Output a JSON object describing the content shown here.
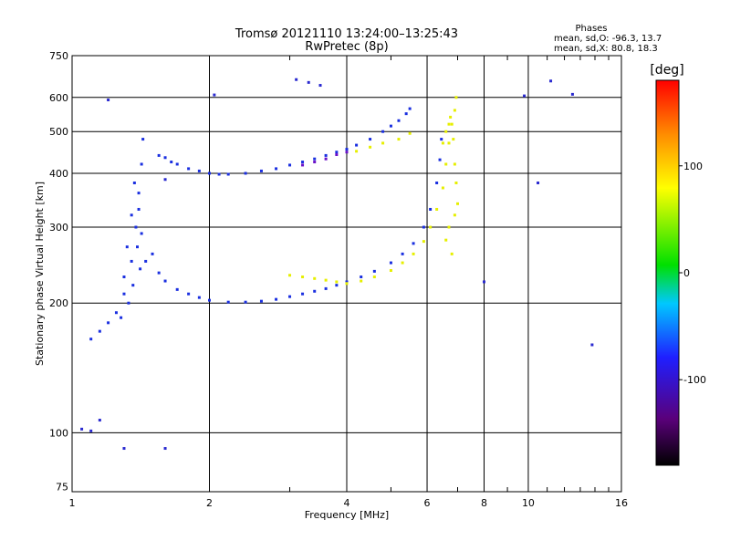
{
  "header": {
    "title_line1": "Tromsø 20121110 13:24:00–13:25:43",
    "title_line2": "RwPretec (8p)",
    "phase_title": "Phases",
    "phase_line1": "mean, sd,O: -96.3, 13.7",
    "phase_line2": "mean, sd,X:  80.8, 18.3"
  },
  "chart_data": {
    "type": "scatter",
    "xlabel": "Frequency [MHz]",
    "ylabel": "Stationary phase Virtual Height [km]",
    "x_scale": "log",
    "y_scale": "log",
    "xlim": [
      1,
      16
    ],
    "ylim": [
      73,
      750
    ],
    "x_ticks": [
      1,
      2,
      4,
      6,
      8,
      10,
      16
    ],
    "y_ticks": [
      75,
      100,
      200,
      300,
      400,
      500,
      600,
      750
    ],
    "grid": true,
    "colorbar": {
      "label": "[deg]",
      "range": [
        -180,
        180
      ],
      "ticks": [
        -100,
        0,
        100
      ],
      "colors": [
        "#000000",
        "#5a007a",
        "#1f1fff",
        "#00c8ff",
        "#00e000",
        "#ffff00",
        "#ff8c00",
        "#ff0000"
      ]
    },
    "series": [
      {
        "trace": "o_mode_F_trace",
        "color": "#1a2fe0",
        "points": [
          [
            1.55,
            440
          ],
          [
            1.6,
            435
          ],
          [
            1.65,
            425
          ],
          [
            1.7,
            420
          ],
          [
            1.8,
            410
          ],
          [
            1.9,
            405
          ],
          [
            2.0,
            400
          ],
          [
            2.1,
            398
          ],
          [
            2.2,
            398
          ],
          [
            2.4,
            400
          ],
          [
            2.6,
            405
          ],
          [
            2.8,
            410
          ],
          [
            3.0,
            418
          ],
          [
            3.2,
            425
          ],
          [
            3.4,
            432
          ],
          [
            3.6,
            440
          ],
          [
            3.8,
            448
          ],
          [
            4.0,
            455
          ],
          [
            4.2,
            465
          ],
          [
            4.5,
            480
          ],
          [
            4.8,
            500
          ],
          [
            5.0,
            515
          ],
          [
            5.2,
            530
          ],
          [
            5.4,
            550
          ],
          [
            5.5,
            565
          ],
          [
            1.5,
            260
          ],
          [
            1.55,
            235
          ],
          [
            1.6,
            225
          ],
          [
            1.7,
            215
          ],
          [
            1.8,
            210
          ],
          [
            1.9,
            206
          ],
          [
            2.0,
            203
          ],
          [
            2.2,
            201
          ],
          [
            2.4,
            201
          ],
          [
            2.6,
            202
          ],
          [
            2.8,
            204
          ],
          [
            3.0,
            207
          ],
          [
            3.2,
            210
          ],
          [
            3.4,
            213
          ],
          [
            3.6,
            216
          ],
          [
            3.8,
            220
          ],
          [
            4.0,
            224
          ],
          [
            4.3,
            230
          ],
          [
            4.6,
            237
          ],
          [
            5.0,
            248
          ],
          [
            5.3,
            260
          ],
          [
            5.6,
            275
          ],
          [
            5.9,
            300
          ],
          [
            6.1,
            330
          ],
          [
            6.3,
            380
          ],
          [
            6.4,
            430
          ],
          [
            6.45,
            480
          ],
          [
            1.1,
            165
          ],
          [
            1.15,
            172
          ],
          [
            1.2,
            180
          ],
          [
            1.25,
            190
          ],
          [
            1.3,
            210
          ],
          [
            1.35,
            250
          ],
          [
            1.38,
            300
          ],
          [
            1.4,
            360
          ],
          [
            1.42,
            420
          ],
          [
            1.43,
            480
          ],
          [
            1.3,
            230
          ],
          [
            1.32,
            270
          ],
          [
            1.35,
            320
          ],
          [
            1.37,
            380
          ],
          [
            1.4,
            330
          ],
          [
            1.42,
            290
          ],
          [
            1.45,
            250
          ],
          [
            1.33,
            200
          ],
          [
            1.28,
            185
          ],
          [
            1.36,
            220
          ],
          [
            1.39,
            270
          ],
          [
            1.41,
            240
          ]
        ]
      },
      {
        "trace": "x_mode_F_trace",
        "color": "#e6ef00",
        "points": [
          [
            3.0,
            232
          ],
          [
            3.2,
            230
          ],
          [
            3.4,
            228
          ],
          [
            3.6,
            226
          ],
          [
            3.8,
            224
          ],
          [
            4.0,
            222
          ],
          [
            4.3,
            225
          ],
          [
            4.6,
            230
          ],
          [
            5.0,
            238
          ],
          [
            5.3,
            248
          ],
          [
            5.6,
            260
          ],
          [
            5.9,
            278
          ],
          [
            6.1,
            300
          ],
          [
            6.3,
            330
          ],
          [
            6.5,
            370
          ],
          [
            6.6,
            420
          ],
          [
            6.7,
            470
          ],
          [
            6.8,
            520
          ],
          [
            6.9,
            560
          ],
          [
            6.95,
            600
          ],
          [
            6.5,
            470
          ],
          [
            6.6,
            500
          ],
          [
            6.7,
            520
          ],
          [
            6.75,
            540
          ],
          [
            6.85,
            480
          ],
          [
            6.9,
            420
          ],
          [
            6.95,
            380
          ],
          [
            7.0,
            340
          ],
          [
            6.6,
            280
          ],
          [
            6.7,
            300
          ],
          [
            6.8,
            260
          ],
          [
            6.9,
            320
          ],
          [
            4.2,
            450
          ],
          [
            4.5,
            460
          ],
          [
            4.8,
            470
          ],
          [
            5.2,
            480
          ],
          [
            5.5,
            495
          ]
        ]
      },
      {
        "trace": "purple_segment",
        "color": "#6a10c8",
        "points": [
          [
            3.2,
            418
          ],
          [
            3.4,
            425
          ],
          [
            3.6,
            432
          ],
          [
            3.8,
            442
          ],
          [
            4.0,
            448
          ]
        ]
      },
      {
        "trace": "scattered_outliers",
        "color": "#2a2ad0",
        "points": [
          [
            1.2,
            592
          ],
          [
            2.05,
            608
          ],
          [
            3.1,
            660
          ],
          [
            3.3,
            650
          ],
          [
            3.5,
            640
          ],
          [
            1.05,
            102
          ],
          [
            1.1,
            101
          ],
          [
            1.3,
            92
          ],
          [
            1.6,
            92
          ],
          [
            9.8,
            605
          ],
          [
            11.2,
            655
          ],
          [
            1.15,
            107
          ],
          [
            8.0,
            224
          ],
          [
            10.5,
            380
          ],
          [
            12.5,
            610
          ],
          [
            13.8,
            160
          ],
          [
            1.6,
            387
          ]
        ]
      }
    ]
  }
}
